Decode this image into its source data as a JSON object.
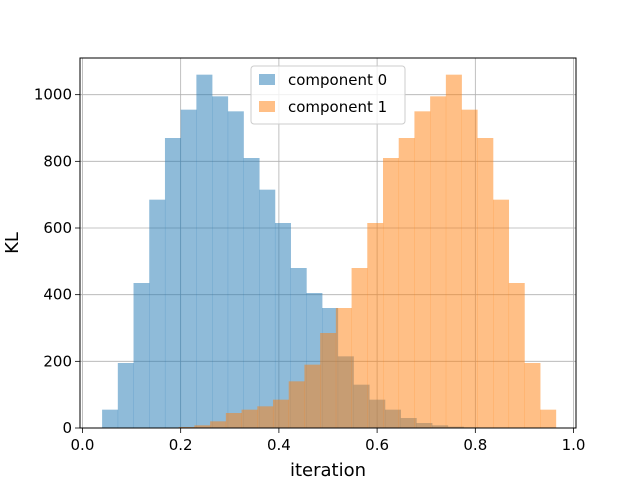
{
  "chart_data": {
    "type": "bar",
    "title": "",
    "xlabel": "iteration",
    "ylabel": "KL",
    "xlim": [
      -0.005,
      1.005
    ],
    "ylim": [
      0,
      1110
    ],
    "xticks": [
      "0.0",
      "0.2",
      "0.4",
      "0.6",
      "0.8",
      "1.0"
    ],
    "yticks": [
      "0",
      "200",
      "400",
      "600",
      "800",
      "1000"
    ],
    "grid": true,
    "legend_position": "upper center",
    "series": [
      {
        "name": "component 0",
        "color": "#1f77b4",
        "alpha": 0.5,
        "bin_edges": [
          0.04,
          0.072,
          0.104,
          0.136,
          0.168,
          0.2,
          0.232,
          0.264,
          0.296,
          0.328,
          0.36,
          0.392,
          0.424,
          0.456,
          0.488,
          0.52,
          0.552,
          0.584,
          0.616,
          0.648,
          0.68,
          0.712,
          0.744,
          0.776,
          0.808,
          0.84,
          0.872,
          0.904,
          0.936
        ],
        "counts": [
          55,
          195,
          435,
          685,
          870,
          955,
          1060,
          995,
          950,
          810,
          715,
          615,
          480,
          405,
          360,
          215,
          130,
          85,
          55,
          30,
          15,
          8,
          4,
          2,
          1,
          0,
          0,
          0
        ]
      },
      {
        "name": "component 1",
        "color": "#ff7f0e",
        "alpha": 0.5,
        "bin_edges": [
          0.068,
          0.1,
          0.132,
          0.164,
          0.196,
          0.228,
          0.26,
          0.292,
          0.324,
          0.356,
          0.388,
          0.42,
          0.452,
          0.484,
          0.516,
          0.548,
          0.58,
          0.612,
          0.644,
          0.676,
          0.708,
          0.74,
          0.772,
          0.804,
          0.836,
          0.868,
          0.9,
          0.932,
          0.964
        ],
        "counts": [
          0,
          0,
          0,
          1,
          3,
          8,
          20,
          45,
          55,
          65,
          85,
          140,
          190,
          285,
          360,
          480,
          615,
          810,
          870,
          950,
          995,
          1060,
          955,
          870,
          685,
          435,
          195,
          55
        ]
      }
    ]
  }
}
